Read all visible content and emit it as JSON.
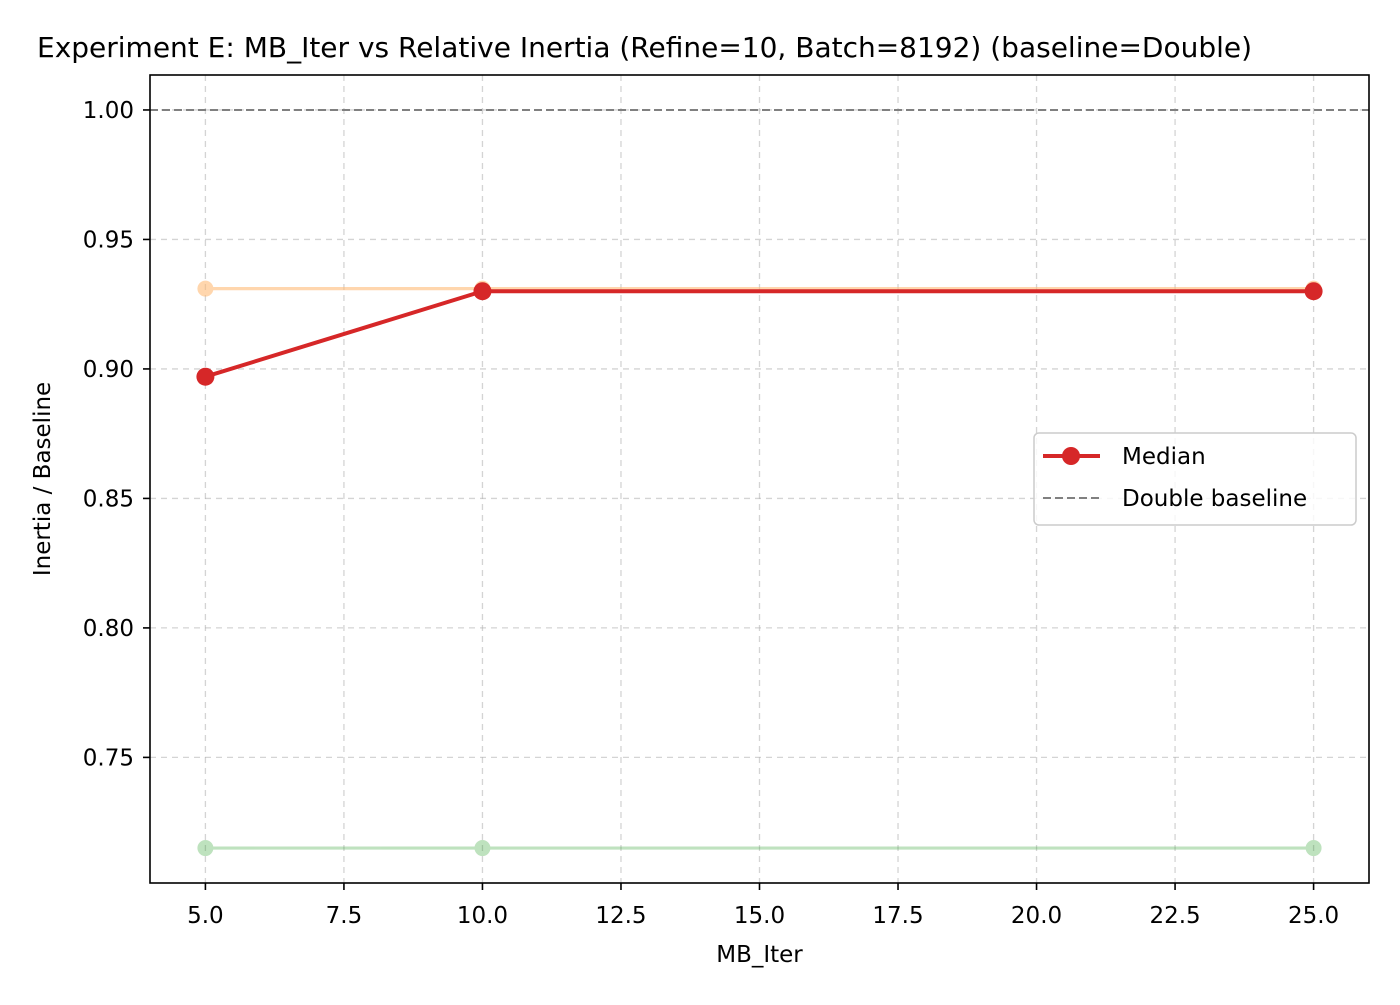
{
  "chart_data": {
    "type": "line",
    "title": "Experiment E: MB_Iter vs Relative Inertia (Refine=10, Batch=8192) (baseline=Double)",
    "xlabel": "MB_Iter",
    "ylabel": "Inertia / Baseline",
    "x": [
      5,
      10,
      25
    ],
    "xlim": [
      4,
      26
    ],
    "ylim": [
      0.7015,
      1.0135
    ],
    "xticks": [
      5.0,
      7.5,
      10.0,
      12.5,
      15.0,
      17.5,
      20.0,
      22.5,
      25.0
    ],
    "xtick_labels": [
      "5.0",
      "7.5",
      "10.0",
      "12.5",
      "15.0",
      "17.5",
      "20.0",
      "22.5",
      "25.0"
    ],
    "yticks": [
      0.75,
      0.8,
      0.85,
      0.9,
      0.95,
      1.0
    ],
    "ytick_labels": [
      "0.75",
      "0.80",
      "0.85",
      "0.90",
      "0.95",
      "1.00"
    ],
    "grid": true,
    "legend_position": "center-right",
    "baseline": {
      "name": "Double baseline",
      "y": 1.0,
      "color": "#808080",
      "style": "dashed"
    },
    "series": [
      {
        "values": [
          0.931,
          0.931,
          0.931
        ],
        "color": "#ffbb78",
        "opacity": 0.6,
        "emphasis": false
      },
      {
        "values": [
          0.715,
          0.715,
          0.715
        ],
        "color": "#2ca02c",
        "opacity": 0.3,
        "emphasis": false
      },
      {
        "name": "Median",
        "values": [
          0.897,
          0.93,
          0.93
        ],
        "color": "#d62728",
        "opacity": 1.0,
        "emphasis": true
      }
    ],
    "legend": [
      {
        "label": "Median",
        "kind": "line-marker",
        "color": "#d62728"
      },
      {
        "label": "Double baseline",
        "kind": "dashed",
        "color": "#808080"
      }
    ]
  }
}
